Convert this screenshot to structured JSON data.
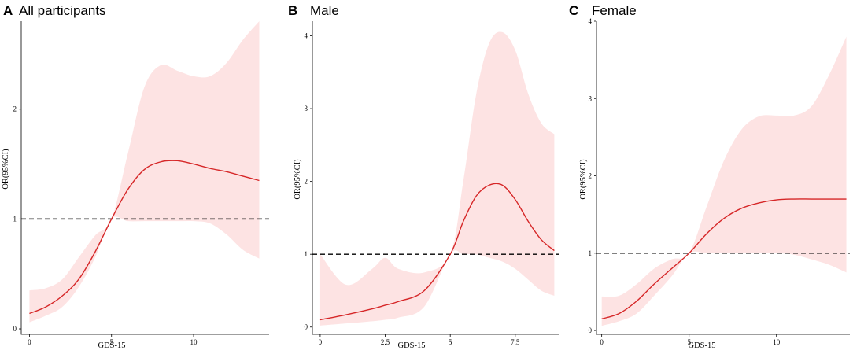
{
  "colors": {
    "line": "#d62728",
    "band": "#fde3e3",
    "reference": "#000000"
  },
  "chart_data": [
    {
      "type": "line",
      "panel": "A",
      "title": "All participants",
      "xlabel": "GDS-15",
      "ylabel": "OR(95%CI)",
      "xlim": [
        -0.5,
        14.6
      ],
      "ylim": [
        -0.05,
        2.8
      ],
      "xticks": [
        0,
        5,
        10
      ],
      "xtick_labels": [
        "0",
        "5",
        "10"
      ],
      "yticks": [
        0,
        1,
        2
      ],
      "ytick_labels": [
        "0",
        "1",
        "2"
      ],
      "reference_y": 1,
      "series": [
        {
          "name": "OR",
          "x": [
            0,
            1,
            2,
            3,
            4,
            5,
            6,
            7,
            8,
            9,
            10,
            11,
            12,
            13,
            14
          ],
          "values": [
            0.14,
            0.2,
            0.3,
            0.45,
            0.7,
            1.0,
            1.27,
            1.45,
            1.52,
            1.53,
            1.5,
            1.46,
            1.43,
            1.39,
            1.35
          ]
        },
        {
          "name": "Lower 95% CI",
          "x": [
            0,
            1,
            2,
            3,
            4,
            5,
            6,
            7,
            8,
            9,
            10,
            11,
            12,
            13,
            14
          ],
          "values": [
            0.06,
            0.12,
            0.2,
            0.38,
            0.65,
            1.0,
            0.98,
            0.98,
            0.98,
            0.98,
            0.98,
            0.96,
            0.86,
            0.72,
            0.64
          ]
        },
        {
          "name": "Upper 95% CI",
          "x": [
            0,
            1,
            2,
            3,
            4,
            5,
            6,
            7,
            8,
            9,
            10,
            11,
            12,
            13,
            14
          ],
          "values": [
            0.35,
            0.37,
            0.45,
            0.65,
            0.85,
            1.0,
            1.6,
            2.2,
            2.4,
            2.35,
            2.3,
            2.3,
            2.42,
            2.63,
            2.8
          ]
        }
      ]
    },
    {
      "type": "line",
      "panel": "B",
      "title": "Male",
      "xlabel": "GDS-15",
      "ylabel": "OR(95%CI)",
      "xlim": [
        -0.3,
        9.2
      ],
      "ylim": [
        -0.1,
        4.2
      ],
      "xticks": [
        0,
        2.5,
        5,
        7.5
      ],
      "xtick_labels": [
        "0",
        "2.5",
        "5",
        "7.5"
      ],
      "yticks": [
        0,
        1,
        2,
        3,
        4
      ],
      "ytick_labels": [
        "0",
        "1",
        "2",
        "3",
        "4"
      ],
      "reference_y": 1,
      "series": [
        {
          "name": "OR",
          "x": [
            0,
            1,
            2,
            2.5,
            3,
            4,
            5,
            5.5,
            6,
            6.5,
            7,
            7.5,
            8,
            8.5,
            9
          ],
          "values": [
            0.1,
            0.17,
            0.25,
            0.3,
            0.35,
            0.5,
            1.0,
            1.45,
            1.8,
            1.95,
            1.95,
            1.75,
            1.45,
            1.2,
            1.05
          ]
        },
        {
          "name": "Lower 95% CI",
          "x": [
            0,
            1,
            2,
            2.5,
            3,
            4,
            5,
            5.5,
            6,
            6.5,
            7,
            7.5,
            8,
            8.5,
            9
          ],
          "values": [
            0.02,
            0.05,
            0.08,
            0.1,
            0.13,
            0.28,
            1.0,
            1.0,
            1.0,
            0.95,
            0.9,
            0.8,
            0.65,
            0.5,
            0.43
          ]
        },
        {
          "name": "Upper 95% CI",
          "x": [
            0,
            1,
            2,
            2.5,
            3,
            4,
            5,
            5.5,
            6,
            6.5,
            7,
            7.5,
            8,
            8.5,
            9
          ],
          "values": [
            1.0,
            0.58,
            0.8,
            0.95,
            0.8,
            0.75,
            1.0,
            2.0,
            3.2,
            3.9,
            4.05,
            3.8,
            3.2,
            2.8,
            2.65
          ]
        }
      ]
    },
    {
      "type": "line",
      "panel": "C",
      "title": "Female",
      "xlabel": "GDS-15",
      "ylabel": "OR(95%CI)",
      "xlim": [
        -0.3,
        14.2
      ],
      "ylim": [
        -0.05,
        4.0
      ],
      "xticks": [
        0,
        5,
        10
      ],
      "xtick_labels": [
        "0",
        "5",
        "10"
      ],
      "yticks": [
        0,
        1,
        2,
        3,
        4
      ],
      "ytick_labels": [
        "0",
        "1",
        "2",
        "3",
        "4"
      ],
      "reference_y": 1,
      "series": [
        {
          "name": "OR",
          "x": [
            0,
            1,
            2,
            3,
            4,
            5,
            6,
            7,
            8,
            9,
            10,
            11,
            12,
            13,
            14
          ],
          "values": [
            0.15,
            0.22,
            0.38,
            0.6,
            0.8,
            1.0,
            1.25,
            1.45,
            1.58,
            1.65,
            1.69,
            1.7,
            1.7,
            1.7,
            1.7
          ]
        },
        {
          "name": "Lower 95% CI",
          "x": [
            0,
            1,
            2,
            3,
            4,
            5,
            6,
            7,
            8,
            9,
            10,
            11,
            12,
            13,
            14
          ],
          "values": [
            0.06,
            0.12,
            0.22,
            0.45,
            0.7,
            1.0,
            1.0,
            1.0,
            1.0,
            1.0,
            1.0,
            0.98,
            0.92,
            0.85,
            0.75
          ]
        },
        {
          "name": "Upper 95% CI",
          "x": [
            0,
            1,
            2,
            3,
            4,
            5,
            6,
            7,
            8,
            9,
            10,
            11,
            12,
            13,
            14
          ],
          "values": [
            0.44,
            0.45,
            0.6,
            0.8,
            0.92,
            1.0,
            1.6,
            2.2,
            2.6,
            2.77,
            2.78,
            2.78,
            2.9,
            3.3,
            3.8
          ]
        }
      ]
    }
  ]
}
